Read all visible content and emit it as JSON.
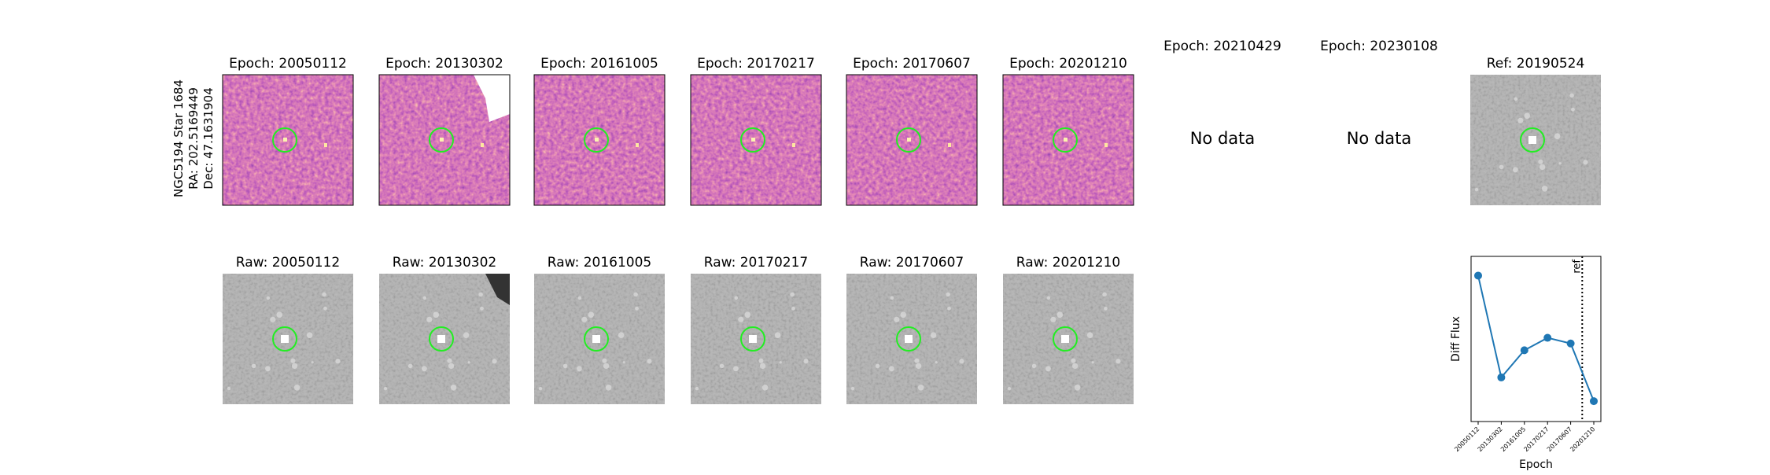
{
  "row_label": [
    "NGC5194 Star 1684",
    "RA: 202.5169449",
    "Dec: 47.1631904"
  ],
  "diff_titles": [
    "Epoch: 20050112",
    "Epoch: 20130302",
    "Epoch: 20161005",
    "Epoch: 20170217",
    "Epoch: 20170607",
    "Epoch: 20201210",
    "Epoch: 20210429",
    "Epoch: 20230108"
  ],
  "no_data_text": "No data",
  "ref_title": "Ref: 20190524",
  "raw_titles": [
    "Raw: 20050112",
    "Raw: 20130302",
    "Raw: 20161005",
    "Raw: 20170217",
    "Raw: 20170607",
    "Raw: 20201210"
  ],
  "chart_data": {
    "type": "line",
    "ylabel": "Diff Flux",
    "xlabel": "Epoch",
    "categories": [
      "20050112",
      "20130302",
      "20161005",
      "20170217",
      "20170607",
      "20201210"
    ],
    "values": [
      129,
      39,
      63,
      74,
      69,
      18
    ],
    "ylim": [
      0,
      146
    ],
    "color": "#1f77b4",
    "ref_label": "ref",
    "ref_x": 4.5
  }
}
